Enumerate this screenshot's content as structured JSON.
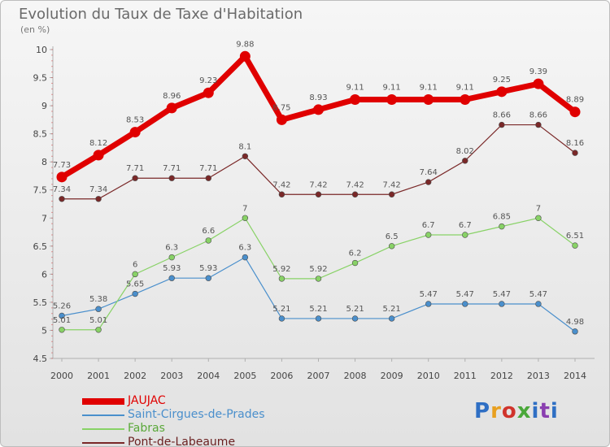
{
  "header": {
    "title": "Evolution du Taux de Taxe d'Habitation",
    "subtitle": "(en %)"
  },
  "logo": {
    "text": "Proxiti",
    "colors": [
      "#2f6fc4",
      "#e8a020",
      "#d0342c",
      "#4aa83a",
      "#2f6fc4",
      "#8a3fb0",
      "#2f6fc4"
    ]
  },
  "chart_data": {
    "type": "line",
    "x": [
      2000,
      2001,
      2002,
      2003,
      2004,
      2005,
      2006,
      2007,
      2008,
      2009,
      2010,
      2011,
      2012,
      2013,
      2014
    ],
    "ylim": [
      4.5,
      10
    ],
    "yticks": [
      4.5,
      5,
      5.5,
      6,
      6.5,
      7,
      7.5,
      8,
      8.5,
      9,
      9.5,
      10
    ],
    "grid": false,
    "legend_position": "bottom-left",
    "series": [
      {
        "name": "JAUJAC",
        "color": "#e00000",
        "emphasis": true,
        "values": [
          7.73,
          8.12,
          8.53,
          8.96,
          9.23,
          9.88,
          8.75,
          8.93,
          9.11,
          9.11,
          9.11,
          9.11,
          9.25,
          9.39,
          8.89
        ]
      },
      {
        "name": "Saint-Cirgues-de-Prades",
        "color": "#4a8fcc",
        "values": [
          5.26,
          5.38,
          5.65,
          5.93,
          5.93,
          6.3,
          5.21,
          5.21,
          5.21,
          5.21,
          5.47,
          5.47,
          5.47,
          5.47,
          4.98
        ]
      },
      {
        "name": "Fabras",
        "color": "#88d266",
        "values": [
          5.01,
          5.01,
          6,
          6.3,
          6.6,
          7,
          5.92,
          5.92,
          6.2,
          6.5,
          6.7,
          6.7,
          6.85,
          7,
          6.51
        ]
      },
      {
        "name": "Pont-de-Labeaume",
        "color": "#7a2828",
        "values": [
          7.34,
          7.34,
          7.71,
          7.71,
          7.71,
          8.1,
          7.42,
          7.42,
          7.42,
          7.42,
          7.64,
          8.02,
          8.66,
          8.66,
          8.16
        ]
      }
    ],
    "labels": [
      [
        "7.73",
        "8.12",
        "8.53",
        "8.96",
        "9.23",
        "9.88",
        "8.75",
        "8.93",
        "9.11",
        "9.11",
        "9.11",
        "9.11",
        "9.25",
        "9.39",
        "8.89"
      ],
      [
        "5.26",
        "5.38",
        "5.65",
        "5.93",
        "5.93",
        "6.3",
        "5.21",
        "5.21",
        "5.21",
        "5.21",
        "5.47",
        "5.47",
        "5.47",
        "5.47",
        "4.98"
      ],
      [
        "5.01",
        "5.01",
        "6",
        "6.3",
        "6.6",
        "7",
        "5.92",
        "5.92",
        "6.2",
        "6.5",
        "6.7",
        "6.7",
        "6.85",
        "7",
        "6.51"
      ],
      [
        "7.34",
        "7.34",
        "7.71",
        "7.71",
        "7.71",
        "8.1",
        "7.42",
        "7.42",
        "7.42",
        "7.42",
        "7.64",
        "8.02",
        "8.66",
        "8.66",
        "8.16"
      ]
    ]
  }
}
